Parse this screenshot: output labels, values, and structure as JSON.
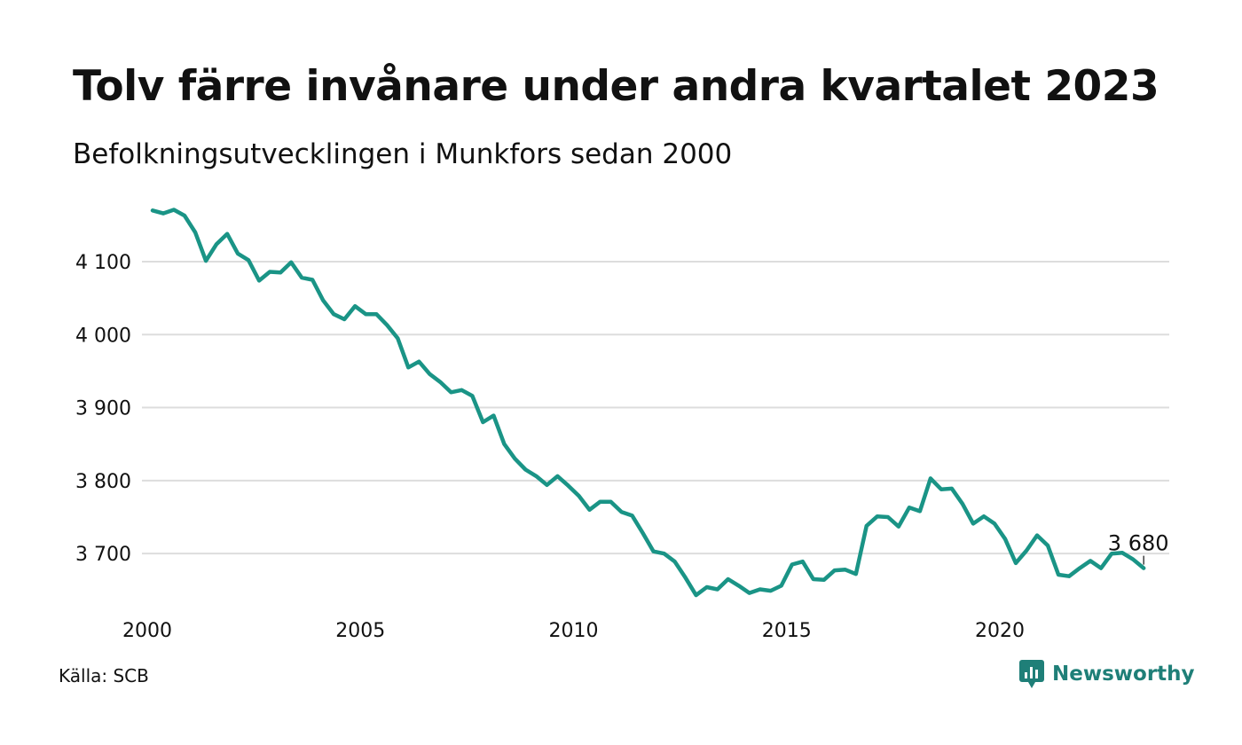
{
  "title": "Tolv färre invånare under andra kvartalet 2023",
  "subtitle": "Befolkningsutvecklingen i Munkfors sedan 2000",
  "source": "Källa: SCB",
  "brand": "Newsworthy",
  "colors": {
    "line": "#1a9486",
    "grid": "#dddddd",
    "brand": "#1f7f78"
  },
  "chart_data": {
    "type": "line",
    "title": "Tolv färre invånare under andra kvartalet 2023",
    "subtitle": "Befolkningsutvecklingen i Munkfors sedan 2000",
    "xlabel": "",
    "ylabel": "",
    "grid": true,
    "legend": "none",
    "x_ticks": [
      2000,
      2005,
      2010,
      2015,
      2020
    ],
    "y_ticks": [
      3700,
      3800,
      3900,
      4000,
      4100
    ],
    "y_tick_labels": [
      "3 700",
      "3 800",
      "3 900",
      "4 000",
      "4 100"
    ],
    "xlim": [
      2000,
      2024.1
    ],
    "ylim": [
      3620,
      4185
    ],
    "end_label": "3 680",
    "series": [
      {
        "x": [
          2000.25,
          2000.5,
          2000.75,
          2001.0,
          2001.25,
          2001.5,
          2001.75,
          2002.0,
          2002.25,
          2002.5,
          2002.75,
          2003.0,
          2003.25,
          2003.5,
          2003.75,
          2004.0,
          2004.25,
          2004.5,
          2004.75,
          2005.0,
          2005.25,
          2005.5,
          2005.75,
          2006.0,
          2006.25,
          2006.5,
          2006.75,
          2007.0,
          2007.25,
          2007.5,
          2007.75,
          2008.0,
          2008.25,
          2008.5,
          2008.75,
          2009.0,
          2009.25,
          2009.5,
          2009.75,
          2010.0,
          2010.25,
          2010.5,
          2010.75,
          2011.0,
          2011.25,
          2011.5,
          2011.75,
          2012.0,
          2012.25,
          2012.5,
          2012.75,
          2013.0,
          2013.25,
          2013.5,
          2013.75,
          2014.0,
          2014.25,
          2014.5,
          2014.75,
          2015.0,
          2015.25,
          2015.5,
          2015.75,
          2016.0,
          2016.25,
          2016.5,
          2016.75,
          2017.0,
          2017.25,
          2017.5,
          2017.75,
          2018.0,
          2018.25,
          2018.5,
          2018.75,
          2019.0,
          2019.25,
          2019.5,
          2019.75,
          2020.0,
          2020.25,
          2020.5,
          2020.75,
          2021.0,
          2021.25,
          2021.5,
          2021.75,
          2022.0,
          2022.25,
          2022.5,
          2022.75,
          2023.0,
          2023.25,
          2023.5
        ],
        "y": [
          4170,
          4166,
          4171,
          4163,
          4140,
          4101,
          4124,
          4138,
          4111,
          4102,
          4074,
          4086,
          4085,
          4099,
          4078,
          4075,
          4047,
          4028,
          4021,
          4039,
          4028,
          4028,
          4013,
          3995,
          3955,
          3963,
          3946,
          3935,
          3921,
          3924,
          3916,
          3880,
          3889,
          3850,
          3830,
          3815,
          3806,
          3794,
          3806,
          3793,
          3779,
          3760,
          3771,
          3771,
          3757,
          3752,
          3728,
          3703,
          3700,
          3689,
          3667,
          3643,
          3654,
          3651,
          3665,
          3656,
          3646,
          3651,
          3649,
          3656,
          3685,
          3689,
          3665,
          3664,
          3677,
          3678,
          3672,
          3738,
          3751,
          3750,
          3737,
          3763,
          3758,
          3803,
          3788,
          3789,
          3768,
          3741,
          3751,
          3741,
          3720,
          3687,
          3704,
          3725,
          3711,
          3671,
          3669,
          3680,
          3690,
          3680,
          3700,
          3701,
          3692,
          3680
        ]
      }
    ]
  }
}
